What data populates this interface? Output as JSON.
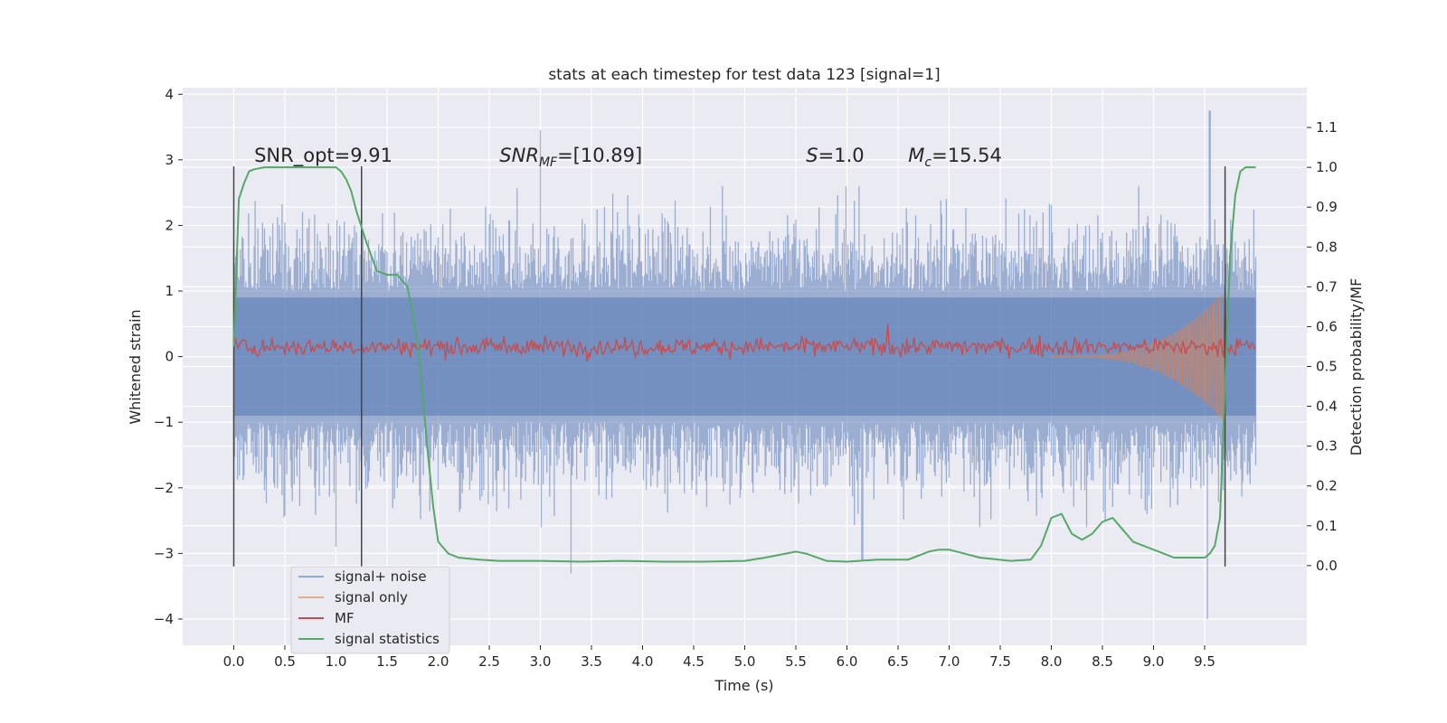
{
  "chart_data": {
    "type": "line",
    "title": "stats at each timestep for test data 123 [signal=1]",
    "xlabel": "Time (s)",
    "ylabel": "Whitened strain",
    "y2label": "Detection probability/MF",
    "xlim": [
      -0.5,
      10.5
    ],
    "ylim": [
      -4.4,
      4.1
    ],
    "y2lim": [
      -0.2,
      1.2
    ],
    "xticks": [
      "0.0",
      "0.5",
      "1.0",
      "1.5",
      "2.0",
      "2.5",
      "3.0",
      "3.5",
      "4.0",
      "4.5",
      "5.0",
      "5.5",
      "6.0",
      "6.5",
      "7.0",
      "7.5",
      "8.0",
      "8.5",
      "9.0",
      "9.5"
    ],
    "yticks": [
      "4",
      "3",
      "2",
      "1",
      "0",
      "−1",
      "−2",
      "−3",
      "−4"
    ],
    "y2ticks": [
      "0.0",
      "0.1",
      "0.2",
      "0.3",
      "0.4",
      "0.5",
      "0.6",
      "0.7",
      "0.8",
      "0.9",
      "1.0",
      "1.1"
    ],
    "grid": true,
    "legend_position": "lower-left",
    "annotations": [
      {
        "text": "SNR_opt=9.91",
        "x": 0.2,
        "y": 3.0
      },
      {
        "text": "SNR",
        "sub": "MF",
        "suffix": "=[10.89]",
        "x": 2.6,
        "y": 3.0
      },
      {
        "text": "S",
        "suffix": "=1.0",
        "x": 5.6,
        "y": 3.0
      },
      {
        "text": "M",
        "sub": "c",
        "suffix": "=15.54",
        "x": 6.6,
        "y": 3.0
      }
    ],
    "vertical_lines_x": [
      0.0,
      1.25,
      9.7
    ],
    "series": [
      {
        "name": "signal+ noise",
        "color": "#4c72b0",
        "kind": "noise",
        "t_start": 0.0,
        "t_end": 10.0,
        "typical_abs_max": 2.0,
        "peak_min": -4.0,
        "peak_max": 3.75
      },
      {
        "name": "signal only",
        "color": "#dd8452",
        "kind": "chirp",
        "t_start": 8.0,
        "t_end": 9.7,
        "peak": 1.0
      },
      {
        "name": "MF",
        "color": "#c44e52",
        "kind": "band",
        "t_start": 0.0,
        "t_end": 10.0,
        "level": 0.15,
        "spike": {
          "x": 9.7,
          "y": 1.0
        }
      },
      {
        "name": "signal statistics",
        "color": "#55a868",
        "kind": "probability",
        "axis": "right",
        "x": [
          0.0,
          0.05,
          0.1,
          0.15,
          0.2,
          0.3,
          0.4,
          0.5,
          0.6,
          0.7,
          0.8,
          0.9,
          1.0,
          1.05,
          1.1,
          1.15,
          1.2,
          1.3,
          1.4,
          1.5,
          1.6,
          1.7,
          1.8,
          1.85,
          1.9,
          1.95,
          2.0,
          2.1,
          2.2,
          2.4,
          2.6,
          3.0,
          3.4,
          3.8,
          4.2,
          4.6,
          5.0,
          5.2,
          5.4,
          5.5,
          5.6,
          5.8,
          6.0,
          6.3,
          6.6,
          6.8,
          6.9,
          7.0,
          7.3,
          7.6,
          7.8,
          7.9,
          8.0,
          8.1,
          8.2,
          8.3,
          8.4,
          8.5,
          8.6,
          8.7,
          8.8,
          9.0,
          9.2,
          9.4,
          9.5,
          9.55,
          9.6,
          9.65,
          9.7,
          9.75,
          9.8,
          9.85,
          9.9,
          10.0
        ],
        "y": [
          0.55,
          0.92,
          0.96,
          0.99,
          0.995,
          1.0,
          1.0,
          1.0,
          1.0,
          1.0,
          1.0,
          1.0,
          1.0,
          0.99,
          0.97,
          0.94,
          0.89,
          0.81,
          0.74,
          0.73,
          0.73,
          0.7,
          0.56,
          0.42,
          0.28,
          0.15,
          0.06,
          0.03,
          0.02,
          0.015,
          0.012,
          0.012,
          0.01,
          0.012,
          0.01,
          0.01,
          0.012,
          0.02,
          0.03,
          0.035,
          0.03,
          0.012,
          0.01,
          0.015,
          0.015,
          0.035,
          0.04,
          0.04,
          0.02,
          0.012,
          0.015,
          0.05,
          0.12,
          0.13,
          0.08,
          0.065,
          0.08,
          0.11,
          0.12,
          0.09,
          0.06,
          0.04,
          0.02,
          0.02,
          0.02,
          0.03,
          0.05,
          0.12,
          0.45,
          0.78,
          0.93,
          0.99,
          1.0,
          1.0
        ]
      }
    ]
  }
}
